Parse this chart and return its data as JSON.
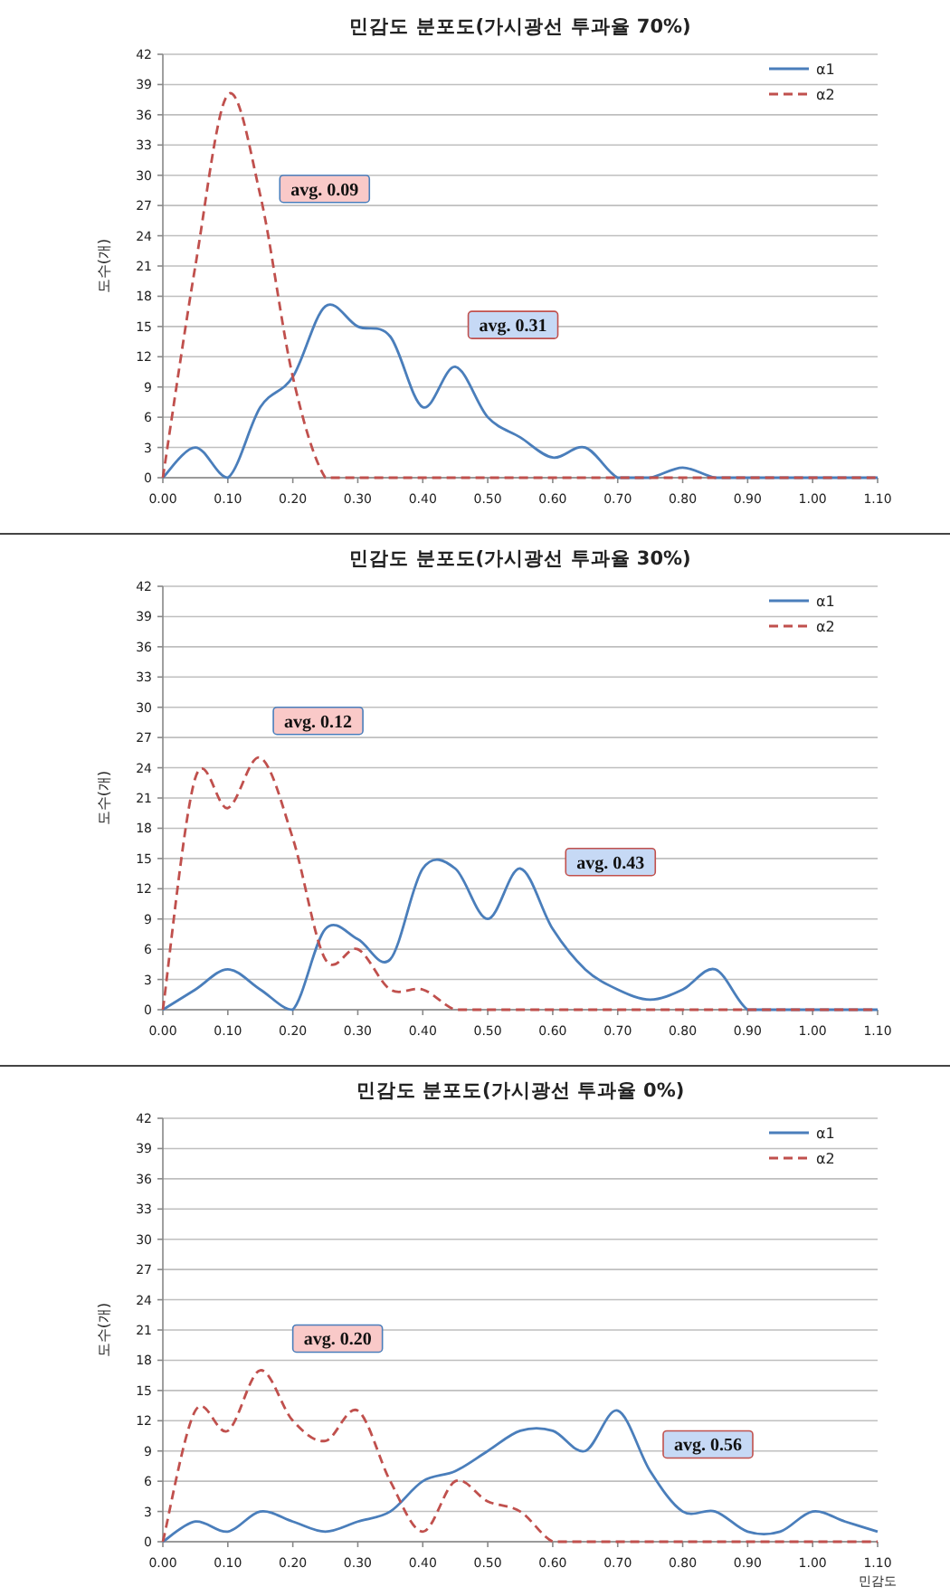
{
  "chart_data": [
    {
      "type": "line",
      "title": "민감도 분포도(가시광선 투과율 70%)",
      "ylabel": "도수(개)",
      "x": [
        0,
        0.05,
        0.1,
        0.15,
        0.2,
        0.25,
        0.3,
        0.35,
        0.4,
        0.45,
        0.5,
        0.55,
        0.6,
        0.65,
        0.7,
        0.75,
        0.8,
        0.85,
        0.9,
        0.95,
        1.0,
        1.05,
        1.1
      ],
      "series": [
        {
          "name": "α1",
          "color": "#4a7ebb",
          "line_style": "solid",
          "values": [
            0,
            3,
            0,
            7,
            10,
            17,
            15,
            14,
            7,
            11,
            6,
            4,
            2,
            3,
            0,
            0,
            1,
            0,
            0,
            0,
            0,
            0,
            0
          ]
        },
        {
          "name": "α2",
          "color": "#c0504d",
          "line_style": "dashed",
          "values": [
            0,
            21,
            38,
            28,
            10,
            0,
            0,
            0,
            0,
            0,
            0,
            0,
            0,
            0,
            0,
            0,
            0,
            0,
            0,
            0,
            0,
            0,
            0
          ]
        }
      ],
      "xlim": [
        0,
        1.1
      ],
      "ylim": [
        0,
        42
      ],
      "xticks": [
        {
          "value": 0,
          "label": "0.00"
        },
        {
          "value": 0.1,
          "label": "0.10"
        },
        {
          "value": 0.2,
          "label": "0.20"
        },
        {
          "value": 0.3,
          "label": "0.30"
        },
        {
          "value": 0.4,
          "label": "0.40"
        },
        {
          "value": 0.5,
          "label": "0.50"
        },
        {
          "value": 0.6,
          "label": "0.60"
        },
        {
          "value": 0.7,
          "label": "0.70"
        },
        {
          "value": 0.8,
          "label": "0.80"
        },
        {
          "value": 0.9,
          "label": "0.90"
        },
        {
          "value": 1.0,
          "label": "1.00"
        },
        {
          "value": 1.1,
          "label": "1.10"
        }
      ],
      "yticks": [
        0,
        3,
        6,
        9,
        12,
        15,
        18,
        21,
        24,
        27,
        30,
        33,
        36,
        39,
        42
      ],
      "grid": "y",
      "legend": "top right",
      "annotations": [
        "avg. 0.09",
        "avg. 0.31"
      ]
    },
    {
      "type": "line",
      "title": "민감도 분포도(가시광선 투과율 30%)",
      "ylabel": "도수(개)",
      "x": [
        0,
        0.05,
        0.1,
        0.15,
        0.2,
        0.25,
        0.3,
        0.35,
        0.4,
        0.45,
        0.5,
        0.55,
        0.6,
        0.65,
        0.7,
        0.75,
        0.8,
        0.85,
        0.9,
        0.95,
        1.0,
        1.05,
        1.1
      ],
      "series": [
        {
          "name": "α1",
          "color": "#4a7ebb",
          "line_style": "solid",
          "values": [
            0,
            2,
            4,
            2,
            0,
            8,
            7,
            5,
            14,
            14,
            9,
            14,
            8,
            4,
            2,
            1,
            2,
            4,
            0,
            0,
            0,
            0,
            0
          ]
        },
        {
          "name": "α2",
          "color": "#c0504d",
          "line_style": "dashed",
          "values": [
            0,
            23,
            20,
            25,
            17,
            5,
            6,
            2,
            2,
            0,
            0,
            0,
            0,
            0,
            0,
            0,
            0,
            0,
            0,
            0,
            0,
            0,
            0
          ]
        }
      ],
      "xlim": [
        0,
        1.1
      ],
      "ylim": [
        0,
        42
      ],
      "xticks": [
        {
          "value": 0,
          "label": "0.00"
        },
        {
          "value": 0.1,
          "label": "0.10"
        },
        {
          "value": 0.2,
          "label": "0.20"
        },
        {
          "value": 0.3,
          "label": "0.30"
        },
        {
          "value": 0.4,
          "label": "0.40"
        },
        {
          "value": 0.5,
          "label": "0.50"
        },
        {
          "value": 0.6,
          "label": "0.60"
        },
        {
          "value": 0.7,
          "label": "0.70"
        },
        {
          "value": 0.8,
          "label": "0.80"
        },
        {
          "value": 0.9,
          "label": "0.90"
        },
        {
          "value": 1.0,
          "label": "1.00"
        },
        {
          "value": 1.1,
          "label": "1.10"
        }
      ],
      "yticks": [
        0,
        3,
        6,
        9,
        12,
        15,
        18,
        21,
        24,
        27,
        30,
        33,
        36,
        39,
        42
      ],
      "grid": "y",
      "legend": "top right",
      "annotations": [
        "avg. 0.12",
        "avg. 0.43"
      ]
    },
    {
      "type": "line",
      "title": "민감도 분포도(가시광선 투과율 0%)",
      "ylabel": "도수(개)",
      "xlabel": "민감도",
      "x": [
        0,
        0.05,
        0.1,
        0.15,
        0.2,
        0.25,
        0.3,
        0.35,
        0.4,
        0.45,
        0.5,
        0.55,
        0.6,
        0.65,
        0.7,
        0.75,
        0.8,
        0.85,
        0.9,
        0.95,
        1.0,
        1.05,
        1.1
      ],
      "series": [
        {
          "name": "α1",
          "color": "#4a7ebb",
          "line_style": "solid",
          "values": [
            0,
            2,
            1,
            3,
            2,
            1,
            2,
            3,
            6,
            7,
            9,
            11,
            11,
            9,
            13,
            7,
            3,
            3,
            1,
            1,
            3,
            2,
            1
          ]
        },
        {
          "name": "α2",
          "color": "#c0504d",
          "line_style": "dashed",
          "values": [
            0,
            13,
            11,
            17,
            12,
            10,
            13,
            6,
            1,
            6,
            4,
            3,
            0,
            0,
            0,
            0,
            0,
            0,
            0,
            0,
            0,
            0,
            0
          ]
        }
      ],
      "xlim": [
        0,
        1.1
      ],
      "ylim": [
        0,
        42
      ],
      "xticks": [
        {
          "value": 0,
          "label": "0.00"
        },
        {
          "value": 0.1,
          "label": "0.10"
        },
        {
          "value": 0.2,
          "label": "0.20"
        },
        {
          "value": 0.3,
          "label": "0.30"
        },
        {
          "value": 0.4,
          "label": "0.40"
        },
        {
          "value": 0.5,
          "label": "0.50"
        },
        {
          "value": 0.6,
          "label": "0.60"
        },
        {
          "value": 0.7,
          "label": "0.70"
        },
        {
          "value": 0.8,
          "label": "0.80"
        },
        {
          "value": 0.9,
          "label": "0.90"
        },
        {
          "value": 1.0,
          "label": "1.00"
        },
        {
          "value": 1.1,
          "label": "1.10"
        }
      ],
      "yticks": [
        0,
        3,
        6,
        9,
        12,
        15,
        18,
        21,
        24,
        27,
        30,
        33,
        36,
        39,
        42
      ],
      "grid": "y",
      "legend": "top right",
      "annotations": [
        "avg. 0.20",
        "avg. 0.56"
      ]
    }
  ]
}
